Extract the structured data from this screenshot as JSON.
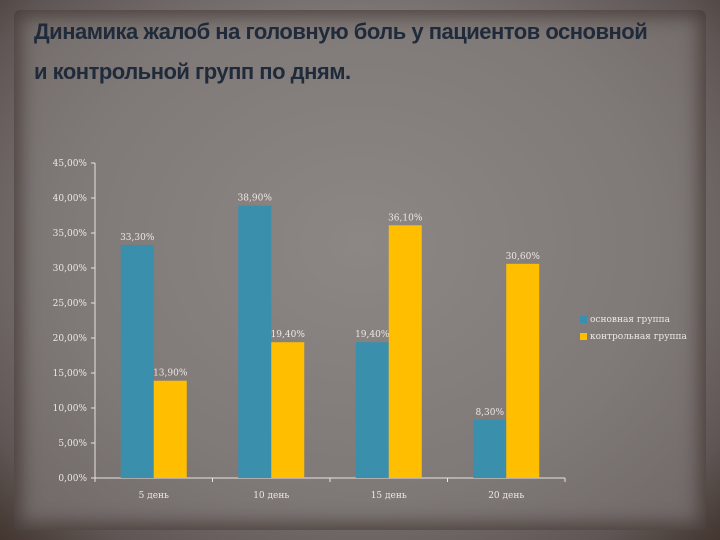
{
  "title": "Динамика жалоб на головную боль у пациентов основной и контрольной групп по дням.",
  "chart_data": {
    "type": "bar",
    "categories": [
      "5 день",
      "10 день",
      "15 день",
      "20 день"
    ],
    "series": [
      {
        "name": "основная группа",
        "color": "#3a8fad",
        "values": [
          33.3,
          38.9,
          19.4,
          8.3
        ],
        "labels": [
          "33,30%",
          "38,90%",
          "19,40%",
          "8,30%"
        ]
      },
      {
        "name": "контрольная группа",
        "color": "#ffbf00",
        "values": [
          13.9,
          19.4,
          36.1,
          30.6
        ],
        "labels": [
          "13,90%",
          "19,40%",
          "36,10%",
          "30,60%"
        ]
      }
    ],
    "ylim": [
      0,
      45
    ],
    "yticks": [
      0,
      5,
      10,
      15,
      20,
      25,
      30,
      35,
      40,
      45
    ],
    "ytick_labels": [
      "0,00%",
      "5,00%",
      "10,00%",
      "15,00%",
      "20,00%",
      "25,00%",
      "30,00%",
      "35,00%",
      "40,00%",
      "45,00%"
    ],
    "xlabel": "",
    "ylabel": "",
    "grid": false,
    "legend": "right"
  }
}
